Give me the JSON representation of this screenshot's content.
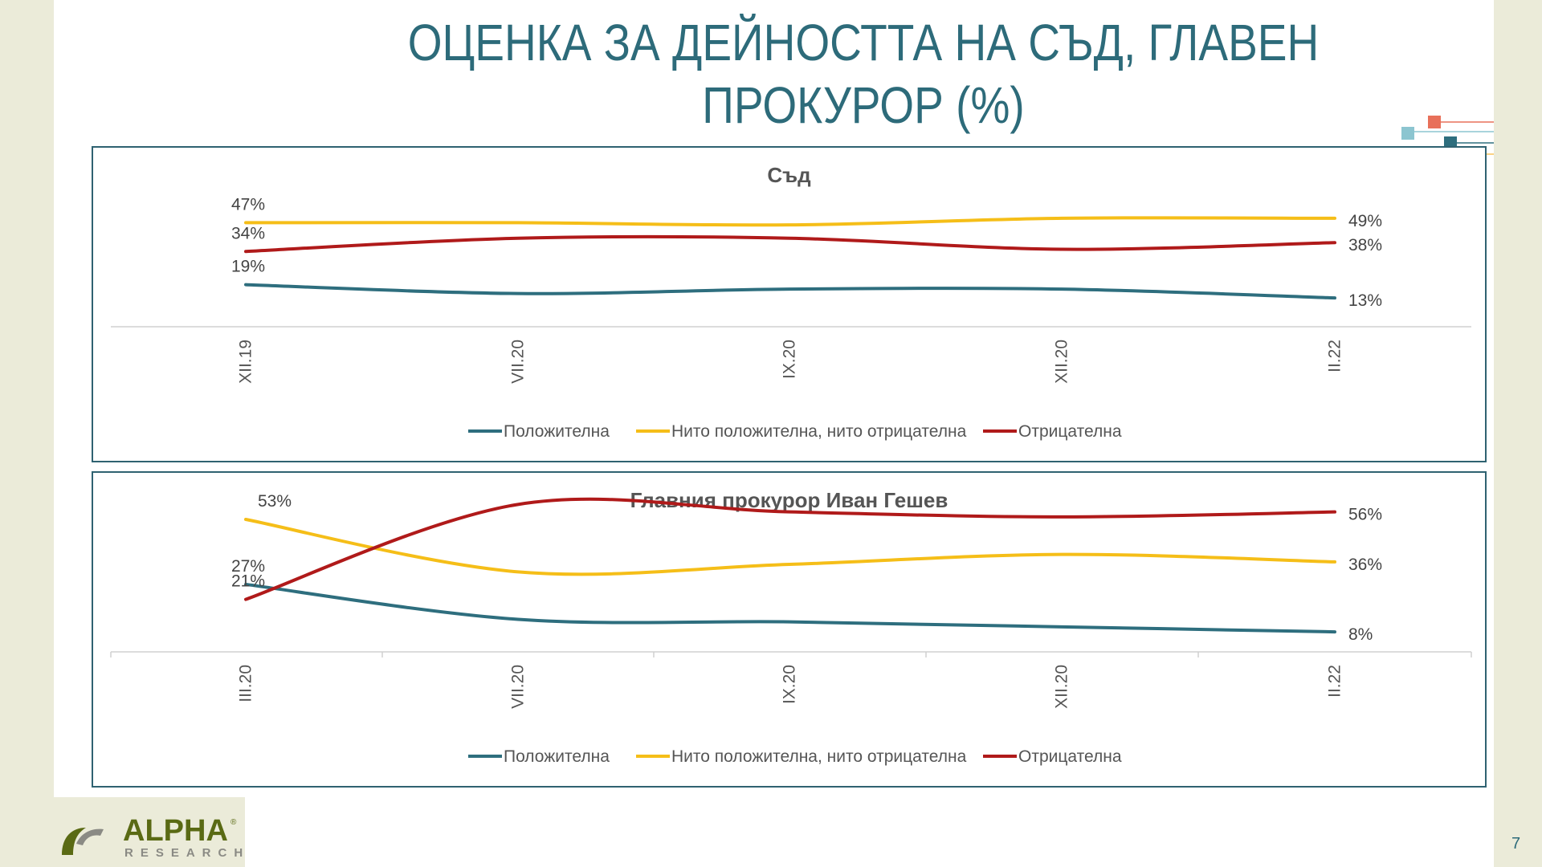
{
  "slide": {
    "title_line1": "ОЦЕНКА ЗА ДЕЙНОСТТА НА СЪД, ГЛАВЕН",
    "title_line2": "ПРОКУРОР (%)",
    "page_number": "7",
    "logo": {
      "word": "ALPHA",
      "sub": "RESEARCH",
      "registered": "®"
    }
  },
  "colors": {
    "positive": "#2e6e7e",
    "neutral": "#f5be18",
    "negative": "#b01a1a",
    "title": "#2d6b7a",
    "frame": "#2f6271",
    "logo_green": "#5a6a14",
    "logo_gray": "#8a8a84"
  },
  "chart_data": [
    {
      "type": "line",
      "title": "Съд",
      "categories": [
        "XII.19",
        "VII.20",
        "IX.20",
        "XII.20",
        "II.22"
      ],
      "series": [
        {
          "name": "Положителна",
          "values": [
            19,
            15,
            17,
            17,
            13
          ]
        },
        {
          "name": "Нито положителна, нито отрицателна",
          "values": [
            47,
            47,
            46,
            49,
            49
          ]
        },
        {
          "name": "Отрицателна",
          "values": [
            34,
            40,
            40,
            35,
            38
          ]
        }
      ],
      "start_labels": [
        "19%",
        "47%",
        "34%"
      ],
      "end_labels": [
        "13%",
        "49%",
        "38%"
      ],
      "ylim": [
        0,
        70
      ],
      "legend": "bottom",
      "grid": false
    },
    {
      "type": "line",
      "title": "Главния прокурор Иван Гешев",
      "categories": [
        "III.20",
        "VII.20",
        "IX.20",
        "XII.20",
        "II.22"
      ],
      "series": [
        {
          "name": "Положителна",
          "values": [
            27,
            13,
            12,
            10,
            8
          ]
        },
        {
          "name": "Нито положителна, нито отрицателна",
          "values": [
            53,
            32,
            35,
            39,
            36
          ]
        },
        {
          "name": "Отрицателна",
          "values": [
            21,
            59,
            56,
            54,
            56
          ]
        }
      ],
      "start_labels": [
        "27%",
        "53%",
        "21%"
      ],
      "end_labels": [
        "8%",
        "36%",
        "56%"
      ],
      "ylim": [
        0,
        62
      ],
      "legend": "bottom",
      "grid": false
    }
  ]
}
